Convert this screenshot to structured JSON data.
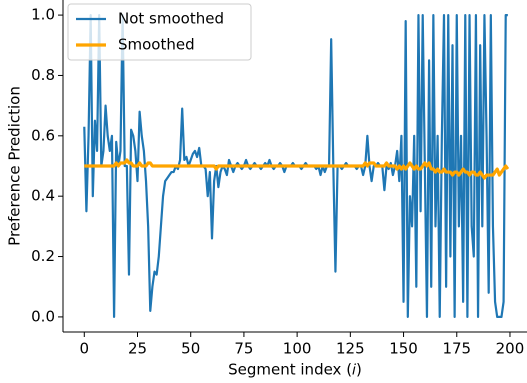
{
  "chart_data": {
    "type": "line",
    "x_label": "Segment index (𝑖)",
    "y_label": "Preference Prediction",
    "x": [
      0,
      1,
      2,
      3,
      4,
      5,
      6,
      7,
      8,
      9,
      10,
      11,
      12,
      13,
      14,
      15,
      16,
      17,
      18,
      19,
      20,
      21,
      22,
      23,
      24,
      25,
      26,
      27,
      28,
      29,
      30,
      31,
      32,
      33,
      34,
      35,
      36,
      37,
      38,
      39,
      40,
      41,
      42,
      43,
      44,
      45,
      46,
      47,
      48,
      49,
      50,
      51,
      52,
      53,
      54,
      55,
      56,
      57,
      58,
      59,
      60,
      61,
      62,
      63,
      64,
      65,
      66,
      67,
      68,
      69,
      70,
      71,
      72,
      73,
      74,
      75,
      76,
      77,
      78,
      79,
      80,
      81,
      82,
      83,
      84,
      85,
      86,
      87,
      88,
      89,
      90,
      91,
      92,
      93,
      94,
      95,
      96,
      97,
      98,
      99,
      100,
      101,
      102,
      103,
      104,
      105,
      106,
      107,
      108,
      109,
      110,
      111,
      112,
      113,
      114,
      115,
      116,
      117,
      118,
      119,
      120,
      121,
      122,
      123,
      124,
      125,
      126,
      127,
      128,
      129,
      130,
      131,
      132,
      133,
      134,
      135,
      136,
      137,
      138,
      139,
      140,
      141,
      142,
      143,
      144,
      145,
      146,
      147,
      148,
      149,
      150,
      151,
      152,
      153,
      154,
      155,
      156,
      157,
      158,
      159,
      160,
      161,
      162,
      163,
      164,
      165,
      166,
      167,
      168,
      169,
      170,
      171,
      172,
      173,
      174,
      175,
      176,
      177,
      178,
      179,
      180,
      181,
      182,
      183,
      184,
      185,
      186,
      187,
      188,
      189,
      190,
      191,
      192,
      193,
      194,
      195,
      196,
      197,
      198,
      199
    ],
    "series": [
      {
        "name": "Not smoothed",
        "color": "#1f77b4",
        "values": [
          0.63,
          0.35,
          0.6,
          1.0,
          0.4,
          0.65,
          0.55,
          1.0,
          0.5,
          0.55,
          0.7,
          0.6,
          0.55,
          0.6,
          0.0,
          0.58,
          0.5,
          0.55,
          1.0,
          0.5,
          0.5,
          0.14,
          0.62,
          0.6,
          0.55,
          0.45,
          0.68,
          0.6,
          0.55,
          0.45,
          0.3,
          0.02,
          0.1,
          0.15,
          0.14,
          0.2,
          0.3,
          0.4,
          0.45,
          0.46,
          0.47,
          0.48,
          0.48,
          0.5,
          0.49,
          0.52,
          0.69,
          0.52,
          0.53,
          0.5,
          0.52,
          0.54,
          0.55,
          0.53,
          0.56,
          0.5,
          0.5,
          0.49,
          0.4,
          0.48,
          0.26,
          0.45,
          0.5,
          0.43,
          0.48,
          0.5,
          0.49,
          0.47,
          0.52,
          0.5,
          0.48,
          0.5,
          0.51,
          0.5,
          0.49,
          0.5,
          0.52,
          0.5,
          0.49,
          0.5,
          0.51,
          0.5,
          0.5,
          0.49,
          0.5,
          0.51,
          0.5,
          0.52,
          0.5,
          0.49,
          0.5,
          0.5,
          0.51,
          0.5,
          0.48,
          0.5,
          0.5,
          0.5,
          0.51,
          0.5,
          0.5,
          0.5,
          0.49,
          0.5,
          0.51,
          0.5,
          0.5,
          0.5,
          0.5,
          0.49,
          0.5,
          0.47,
          0.5,
          0.48,
          0.5,
          0.5,
          0.92,
          0.5,
          0.15,
          0.5,
          0.5,
          0.49,
          0.5,
          0.51,
          0.5,
          0.5,
          0.5,
          0.5,
          0.49,
          0.5,
          0.5,
          0.47,
          0.5,
          0.6,
          0.5,
          0.45,
          0.5,
          0.5,
          0.51,
          0.5,
          0.5,
          0.42,
          0.5,
          0.49,
          0.51,
          0.47,
          0.5,
          0.55,
          0.45,
          0.6,
          0.05,
          0.98,
          0.0,
          0.4,
          0.3,
          0.6,
          0.1,
          1.0,
          0.35,
          1.0,
          0.5,
          0.0,
          0.85,
          0.1,
          1.0,
          0.3,
          0.6,
          0.0,
          0.6,
          1.0,
          0.1,
          1.0,
          0.2,
          0.9,
          0.0,
          1.0,
          0.3,
          0.6,
          0.05,
          1.0,
          0.0,
          1.0,
          0.3,
          0.2,
          1.0,
          0.0,
          0.9,
          0.3,
          1.0,
          0.6,
          0.08,
          1.0,
          0.3,
          0.05,
          0.0,
          0.0,
          0.0,
          0.05,
          1.0,
          1.0
        ]
      },
      {
        "name": "Smoothed",
        "color": "#ffa500",
        "values": [
          0.5,
          0.5,
          0.5,
          0.5,
          0.5,
          0.5,
          0.5,
          0.5,
          0.5,
          0.5,
          0.5,
          0.5,
          0.5,
          0.5,
          0.5,
          0.51,
          0.5,
          0.51,
          0.51,
          0.51,
          0.52,
          0.51,
          0.51,
          0.5,
          0.5,
          0.5,
          0.51,
          0.5,
          0.5,
          0.5,
          0.51,
          0.51,
          0.5,
          0.5,
          0.5,
          0.5,
          0.5,
          0.5,
          0.5,
          0.5,
          0.5,
          0.5,
          0.5,
          0.5,
          0.5,
          0.5,
          0.5,
          0.5,
          0.5,
          0.5,
          0.5,
          0.5,
          0.5,
          0.5,
          0.5,
          0.5,
          0.5,
          0.5,
          0.5,
          0.5,
          0.5,
          0.5,
          0.49,
          0.5,
          0.5,
          0.5,
          0.5,
          0.5,
          0.5,
          0.5,
          0.5,
          0.5,
          0.5,
          0.5,
          0.5,
          0.5,
          0.5,
          0.5,
          0.5,
          0.5,
          0.5,
          0.5,
          0.5,
          0.5,
          0.5,
          0.5,
          0.5,
          0.5,
          0.5,
          0.5,
          0.5,
          0.5,
          0.5,
          0.5,
          0.5,
          0.5,
          0.5,
          0.5,
          0.5,
          0.5,
          0.5,
          0.5,
          0.5,
          0.5,
          0.5,
          0.5,
          0.5,
          0.5,
          0.5,
          0.5,
          0.5,
          0.5,
          0.5,
          0.5,
          0.5,
          0.5,
          0.5,
          0.5,
          0.5,
          0.5,
          0.5,
          0.5,
          0.5,
          0.5,
          0.5,
          0.5,
          0.5,
          0.5,
          0.5,
          0.5,
          0.5,
          0.5,
          0.51,
          0.5,
          0.51,
          0.51,
          0.51,
          0.5,
          0.5,
          0.5,
          0.5,
          0.5,
          0.51,
          0.5,
          0.5,
          0.5,
          0.5,
          0.49,
          0.5,
          0.49,
          0.5,
          0.49,
          0.5,
          0.51,
          0.5,
          0.49,
          0.5,
          0.49,
          0.49,
          0.5,
          0.51,
          0.5,
          0.51,
          0.49,
          0.49,
          0.48,
          0.49,
          0.48,
          0.48,
          0.49,
          0.48,
          0.48,
          0.48,
          0.47,
          0.48,
          0.48,
          0.47,
          0.48,
          0.49,
          0.48,
          0.48,
          0.47,
          0.48,
          0.48,
          0.47,
          0.47,
          0.48,
          0.47,
          0.46,
          0.47,
          0.47,
          0.47,
          0.47,
          0.48,
          0.49,
          0.47,
          0.48,
          0.49,
          0.5,
          0.49
        ]
      }
    ],
    "xlim": [
      -10,
      208
    ],
    "ylim": [
      -0.05,
      1.05
    ],
    "xticks": [
      0,
      25,
      50,
      75,
      100,
      125,
      150,
      175,
      200
    ],
    "yticks": [
      {
        "value": 0,
        "label": "0.0"
      },
      0.2,
      0.4,
      0.6,
      0.8,
      {
        "value": 1,
        "label": "1.0"
      }
    ],
    "legend": "upper left"
  }
}
